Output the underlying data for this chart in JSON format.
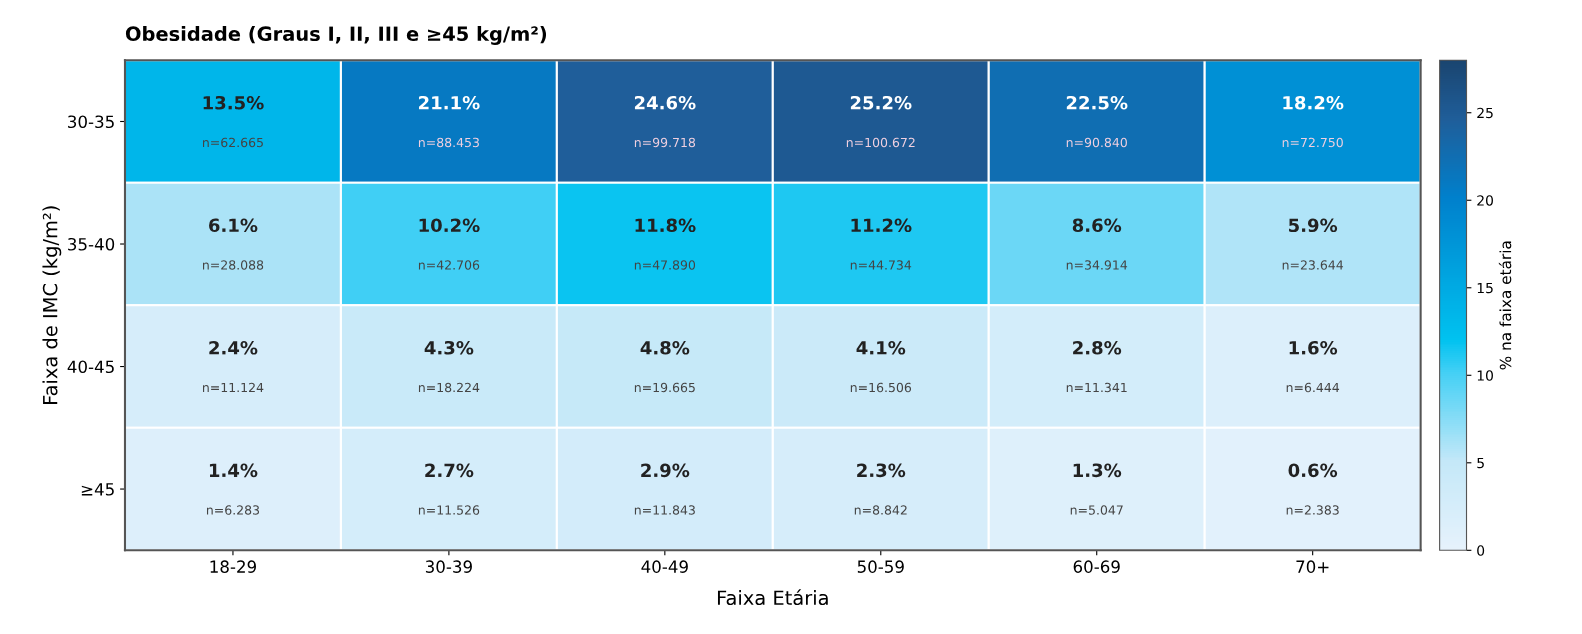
{
  "chart_data": {
    "type": "heatmap",
    "title": "Obesidade (Graus I, II, III e ≥45 kg/m²)",
    "xlabel": "Faixa Etária",
    "ylabel": "Faixa de IMC (kg/m²)",
    "clabel": "% na faixa etária",
    "categories": [
      "18-29",
      "30-39",
      "40-49",
      "50-59",
      "60-69",
      "70+"
    ],
    "y_categories": [
      "30-35",
      "35-40",
      "40-45",
      "≥45"
    ],
    "cells": [
      [
        13.5,
        21.1,
        24.6,
        25.2,
        22.5,
        18.2
      ],
      [
        6.1,
        10.2,
        11.8,
        11.2,
        8.6,
        5.9
      ],
      [
        2.4,
        4.3,
        4.8,
        4.1,
        2.8,
        1.6
      ],
      [
        1.4,
        2.7,
        2.9,
        2.3,
        1.3,
        0.6
      ]
    ],
    "cell_labels": [
      [
        "13.5%\nn=62.665",
        "21.1%\nn=88.453",
        "24.6%\nn=99.718",
        "25.2%\nn=100.672",
        "22.5%\nn=90.840",
        "18.2%\nn=72.750"
      ],
      [
        "6.1%\nn=28.088",
        "10.2%\nn=42.706",
        "11.8%\nn=47.890",
        "11.2%\nn=44.734",
        "8.6%\nn=34.914",
        "5.9%\nn=23.644"
      ],
      [
        "2.4%\nn=11.124",
        "4.3%\nn=18.224",
        "4.8%\nn=19.665",
        "4.1%\nn=16.506",
        "2.8%\nn=11.341",
        "1.6%\nn=6.444"
      ],
      [
        "1.4%\nn=6.283",
        "2.7%\nn=11.526",
        "2.9%\nn=11.843",
        "2.3%\nn=8.842",
        "1.3%\nn=5.047",
        "0.6%\nn=2.383"
      ]
    ],
    "clim": [
      0,
      28
    ],
    "cticks": [
      0,
      5,
      10,
      15,
      20,
      25
    ]
  }
}
